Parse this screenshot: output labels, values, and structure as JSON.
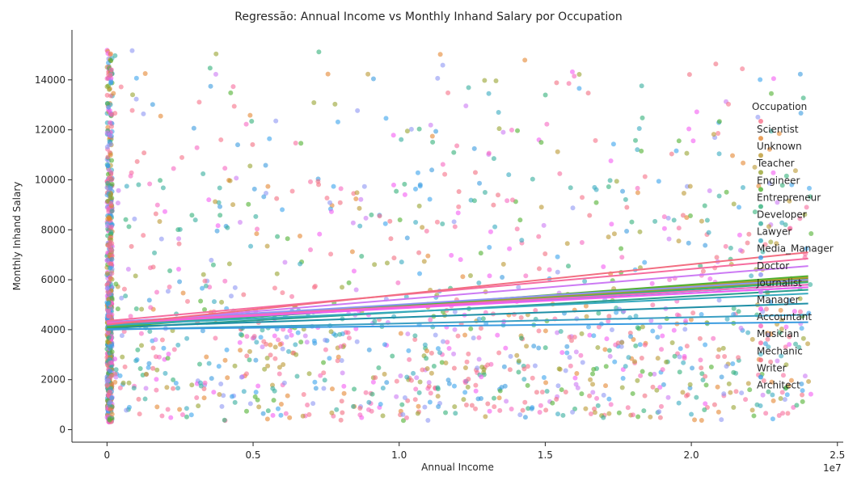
{
  "chart_data": {
    "type": "scatter",
    "title": "Regressão: Annual Income vs Monthly Inhand Salary por Occupation",
    "xlabel": "Annual Income",
    "ylabel": "Monthly Inhand Salary",
    "x_offset_label": "1e7",
    "xlim": [
      -1200000,
      25200000
    ],
    "ylim": [
      -500,
      16000
    ],
    "x_ticks": [
      0,
      5000000,
      10000000,
      15000000,
      20000000,
      25000000
    ],
    "x_tick_labels": [
      "0",
      "0.5",
      "1.0",
      "1.5",
      "2.0",
      "2.5"
    ],
    "y_ticks": [
      0,
      2000,
      4000,
      6000,
      8000,
      10000,
      12000,
      14000
    ],
    "y_tick_labels": [
      "0",
      "2000",
      "4000",
      "6000",
      "8000",
      "10000",
      "12000",
      "14000"
    ],
    "grid": false,
    "legend_position": "right",
    "legend_title": "Occupation",
    "series": [
      {
        "name": "Scientist",
        "color": "#f77189",
        "regression": [
          [
            0,
            4300
          ],
          [
            24000000,
            5900
          ]
        ]
      },
      {
        "name": "Unknown",
        "color": "#e48732",
        "regression": [
          [
            0,
            4250
          ],
          [
            24000000,
            6000
          ]
        ]
      },
      {
        "name": "Teacher",
        "color": "#bb9832",
        "regression": [
          [
            0,
            4150
          ],
          [
            24000000,
            6100
          ]
        ]
      },
      {
        "name": "Engineer",
        "color": "#97a431",
        "regression": [
          [
            0,
            4200
          ],
          [
            24000000,
            5950
          ]
        ]
      },
      {
        "name": "Entrepreneur",
        "color": "#50b131",
        "regression": [
          [
            0,
            4100
          ],
          [
            24000000,
            6150
          ]
        ]
      },
      {
        "name": "Developer",
        "color": "#33b07a",
        "regression": [
          [
            0,
            4150
          ],
          [
            24000000,
            5900
          ]
        ]
      },
      {
        "name": "Lawyer",
        "color": "#35ad9c",
        "regression": [
          [
            0,
            4250
          ],
          [
            24000000,
            5800
          ]
        ]
      },
      {
        "name": "Media_Manager",
        "color": "#37aabf",
        "regression": [
          [
            0,
            4180
          ],
          [
            24000000,
            5450
          ]
        ]
      },
      {
        "name": "Doctor",
        "color": "#3ba3ec",
        "regression": [
          [
            0,
            4300
          ],
          [
            24000000,
            5700
          ]
        ]
      },
      {
        "name": "Journalist",
        "color": "#8d96f4",
        "regression": [
          [
            0,
            4300
          ],
          [
            24000000,
            6000
          ]
        ]
      },
      {
        "name": "Manager",
        "color": "#cc7af4",
        "regression": [
          [
            0,
            4250
          ],
          [
            24000000,
            6550
          ]
        ]
      },
      {
        "name": "Accountant",
        "color": "#f45cf2",
        "regression": [
          [
            0,
            4250
          ],
          [
            24000000,
            5700
          ]
        ]
      },
      {
        "name": "Musician",
        "color": "#f668c2",
        "regression": [
          [
            0,
            4280
          ],
          [
            24000000,
            5800
          ]
        ]
      },
      {
        "name": "Mechanic",
        "color": "#f66c9f",
        "regression": [
          [
            0,
            4350
          ],
          [
            24000000,
            6850
          ]
        ]
      },
      {
        "name": "Writer",
        "color": "#f26e81",
        "regression": [
          [
            0,
            4200
          ],
          [
            24000000,
            7100
          ]
        ]
      },
      {
        "name": "Architect",
        "color": "#3a9be0",
        "regression": [
          [
            0,
            4020
          ],
          [
            24000000,
            4300
          ]
        ]
      }
    ],
    "extra_regression_lines": [
      {
        "color": "#2a9d8f",
        "regression": [
          [
            0,
            4050
          ],
          [
            24000000,
            5600
          ]
        ]
      },
      {
        "color": "#1f8fa6",
        "regression": [
          [
            0,
            4100
          ],
          [
            24000000,
            5050
          ]
        ]
      },
      {
        "color": "#3ca0c4",
        "regression": [
          [
            0,
            4000
          ],
          [
            24000000,
            4600
          ]
        ]
      },
      {
        "color": "#6a9f2e",
        "regression": [
          [
            0,
            4150
          ],
          [
            24000000,
            6050
          ]
        ]
      }
    ],
    "dense_cluster": {
      "x_range": [
        0,
        180000
      ],
      "y_range": [
        300,
        15200
      ],
      "description": "Annual Income near zero with salaries across full range"
    }
  }
}
